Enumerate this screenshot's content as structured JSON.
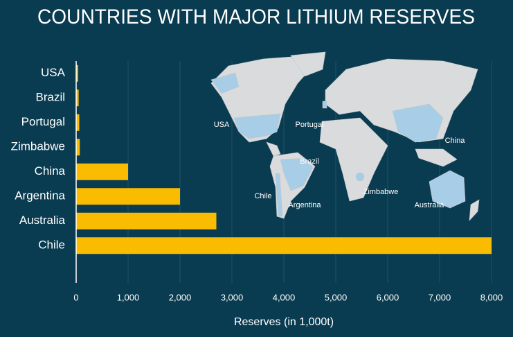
{
  "chart_data": {
    "type": "bar",
    "orientation": "horizontal",
    "title": "COUNTRIES WITH MAJOR LITHIUM RESERVES",
    "x_label": "Reserves (in 1,000t)",
    "categories": [
      "USA",
      "Brazil",
      "Portugal",
      "Zimbabwe",
      "China",
      "Argentina",
      "Australia",
      "Chile"
    ],
    "values": [
      38,
      48,
      60,
      70,
      1000,
      2000,
      2700,
      8000
    ],
    "color": "#f9bc00",
    "xlim": [
      0,
      8000
    ],
    "xticks": [
      0,
      {
        "value": 1000,
        "label": "1,000"
      },
      {
        "value": 2000,
        "label": "2,000"
      },
      {
        "value": 3000,
        "label": "3,000"
      },
      {
        "value": 4000,
        "label": "4,000"
      },
      {
        "value": 5000,
        "label": "5,000"
      },
      {
        "value": 6000,
        "label": "6,000"
      },
      {
        "value": 7000,
        "label": "7,000"
      },
      {
        "value": 8000,
        "label": "8,000"
      }
    ],
    "grid": true,
    "map_labels": [
      "USA",
      "Portugal",
      "China",
      "Brazil",
      "Chile",
      "Argentina",
      "Zimbabwe",
      "Australia"
    ]
  }
}
